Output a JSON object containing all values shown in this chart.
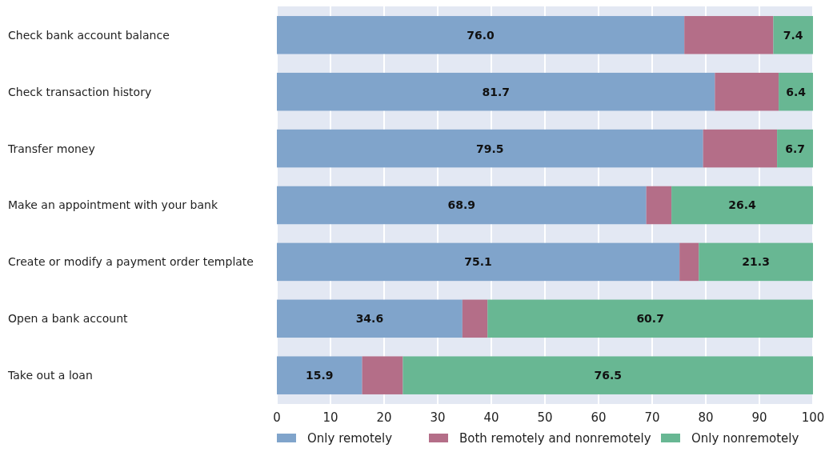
{
  "chart_data": {
    "type": "bar",
    "orientation": "horizontal",
    "stacked": true,
    "categories": [
      "Check bank account balance",
      "Check transaction history",
      "Transfer money",
      "Make an appointment with your bank",
      "Create or modify a payment order template",
      "Open a bank account",
      "Take out a loan"
    ],
    "series": [
      {
        "name": "Only remotely",
        "color": "#80a4cb",
        "values": [
          76.0,
          81.7,
          79.5,
          68.9,
          75.1,
          34.6,
          15.9
        ],
        "value_labels": [
          "76.0",
          "81.7",
          "79.5",
          "68.9",
          "75.1",
          "34.6",
          "15.9"
        ]
      },
      {
        "name": "Both remotely and nonremotely",
        "color": "#b46e88",
        "values": [
          16.6,
          11.9,
          13.8,
          4.7,
          3.6,
          4.7,
          7.6
        ],
        "value_labels": [
          null,
          null,
          null,
          null,
          null,
          null,
          null
        ]
      },
      {
        "name": "Only nonremotely",
        "color": "#68b793",
        "values": [
          7.4,
          6.4,
          6.7,
          26.4,
          21.3,
          60.7,
          76.5
        ],
        "value_labels": [
          "7.4",
          "6.4",
          "6.7",
          "26.4",
          "21.3",
          "60.7",
          "76.5"
        ]
      }
    ],
    "xlim": [
      0,
      100
    ],
    "xticks": [
      0,
      10,
      20,
      30,
      40,
      50,
      60,
      70,
      80,
      90,
      100
    ],
    "grid": "x",
    "legend": "bottom"
  }
}
